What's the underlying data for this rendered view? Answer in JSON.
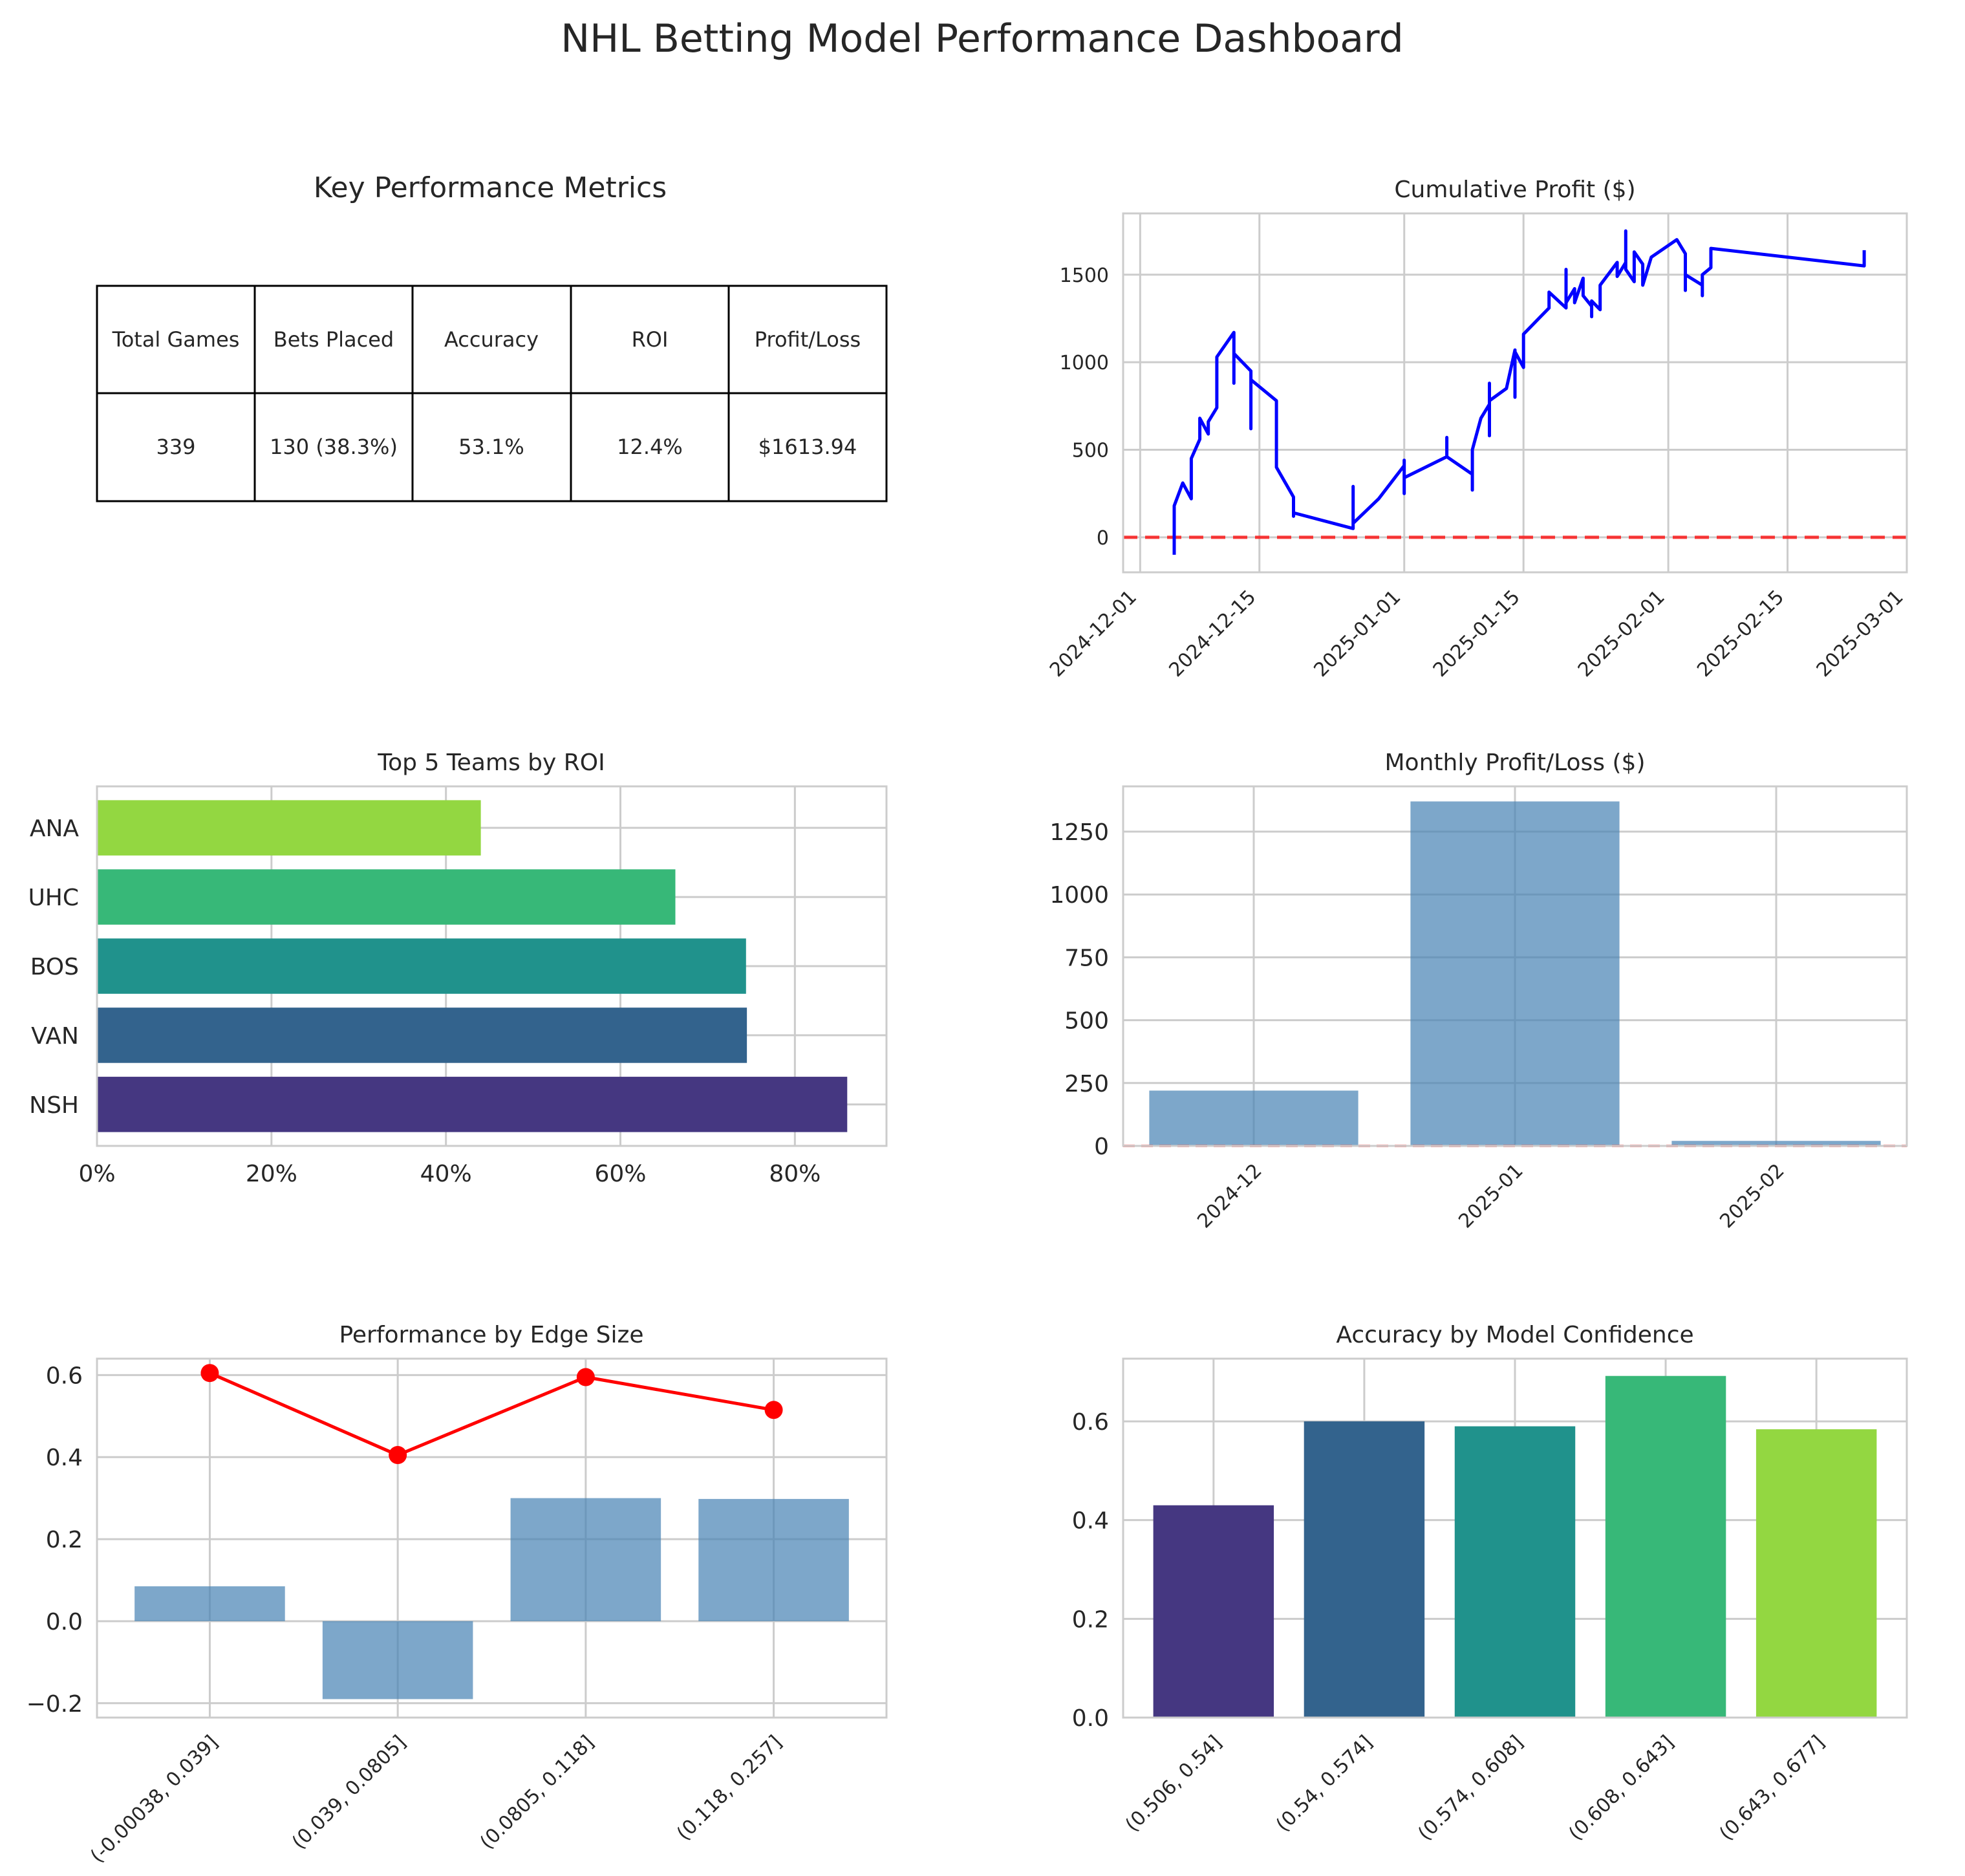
{
  "dashboard_title": "NHL Betting Model Performance Dashboard",
  "metrics_table": {
    "title": "Key Performance Metrics",
    "headers": [
      "Total Games",
      "Bets Placed",
      "Accuracy",
      "ROI",
      "Profit/Loss"
    ],
    "values": [
      "339",
      "130 (38.3%)",
      "53.1%",
      "12.4%",
      "$1613.94"
    ]
  },
  "chart_data": [
    {
      "id": "cumulative",
      "type": "line",
      "title": "Cumulative Profit ($)",
      "xlabel": "",
      "ylabel": "",
      "xlim": [
        "2024-11-29",
        "2025-03-01"
      ],
      "ylim": [
        -200,
        1850
      ],
      "x_ticks": [
        "2024-12-01",
        "2024-12-15",
        "2025-01-01",
        "2025-01-15",
        "2025-02-01",
        "2025-02-15",
        "2025-03-01"
      ],
      "y_ticks": [
        0,
        500,
        1000,
        1500
      ],
      "grid": true,
      "line_color": "#0000ff",
      "reference_line": {
        "y": 0,
        "color": "#ff0000",
        "style": "dashed"
      },
      "points": [
        [
          "2024-12-05",
          -100
        ],
        [
          "2024-12-05",
          180
        ],
        [
          "2024-12-06",
          310
        ],
        [
          "2024-12-07",
          220
        ],
        [
          "2024-12-07",
          450
        ],
        [
          "2024-12-08",
          560
        ],
        [
          "2024-12-08",
          680
        ],
        [
          "2024-12-09",
          590
        ],
        [
          "2024-12-09",
          660
        ],
        [
          "2024-12-10",
          740
        ],
        [
          "2024-12-10",
          1030
        ],
        [
          "2024-12-11",
          1100
        ],
        [
          "2024-12-12",
          1170
        ],
        [
          "2024-12-12",
          880
        ],
        [
          "2024-12-12",
          1050
        ],
        [
          "2024-12-13",
          1000
        ],
        [
          "2024-12-14",
          950
        ],
        [
          "2024-12-14",
          620
        ],
        [
          "2024-12-14",
          900
        ],
        [
          "2024-12-17",
          780
        ],
        [
          "2024-12-17",
          400
        ],
        [
          "2024-12-19",
          230
        ],
        [
          "2024-12-19",
          120
        ],
        [
          "2024-12-19",
          140
        ],
        [
          "2024-12-26",
          50
        ],
        [
          "2024-12-26",
          290
        ],
        [
          "2024-12-26",
          80
        ],
        [
          "2024-12-29",
          220
        ],
        [
          "2025-01-01",
          410
        ],
        [
          "2025-01-01",
          440
        ],
        [
          "2025-01-01",
          250
        ],
        [
          "2025-01-01",
          340
        ],
        [
          "2025-01-06",
          460
        ],
        [
          "2025-01-06",
          570
        ],
        [
          "2025-01-06",
          460
        ],
        [
          "2025-01-09",
          360
        ],
        [
          "2025-01-09",
          270
        ],
        [
          "2025-01-09",
          500
        ],
        [
          "2025-01-10",
          680
        ],
        [
          "2025-01-11",
          760
        ],
        [
          "2025-01-11",
          880
        ],
        [
          "2025-01-11",
          580
        ],
        [
          "2025-01-11",
          780
        ],
        [
          "2025-01-13",
          850
        ],
        [
          "2025-01-14",
          1070
        ],
        [
          "2025-01-14",
          800
        ],
        [
          "2025-01-14",
          1060
        ],
        [
          "2025-01-15",
          970
        ],
        [
          "2025-01-15",
          1160
        ],
        [
          "2025-01-17",
          1260
        ],
        [
          "2025-01-18",
          1310
        ],
        [
          "2025-01-18",
          1400
        ],
        [
          "2025-01-20",
          1310
        ],
        [
          "2025-01-20",
          1530
        ],
        [
          "2025-01-20",
          1340
        ],
        [
          "2025-01-21",
          1420
        ],
        [
          "2025-01-21",
          1340
        ],
        [
          "2025-01-22",
          1480
        ],
        [
          "2025-01-22",
          1380
        ],
        [
          "2025-01-23",
          1320
        ],
        [
          "2025-01-23",
          1260
        ],
        [
          "2025-01-23",
          1350
        ],
        [
          "2025-01-24",
          1300
        ],
        [
          "2025-01-24",
          1440
        ],
        [
          "2025-01-26",
          1570
        ],
        [
          "2025-01-26",
          1490
        ],
        [
          "2025-01-27",
          1570
        ],
        [
          "2025-01-27",
          1750
        ],
        [
          "2025-01-27",
          1530
        ],
        [
          "2025-01-28",
          1460
        ],
        [
          "2025-01-28",
          1630
        ],
        [
          "2025-01-29",
          1560
        ],
        [
          "2025-01-29",
          1440
        ],
        [
          "2025-01-30",
          1600
        ],
        [
          "2025-02-02",
          1700
        ],
        [
          "2025-02-03",
          1620
        ],
        [
          "2025-02-03",
          1410
        ],
        [
          "2025-02-03",
          1500
        ],
        [
          "2025-02-05",
          1440
        ],
        [
          "2025-02-05",
          1380
        ],
        [
          "2025-02-05",
          1500
        ],
        [
          "2025-02-06",
          1540
        ],
        [
          "2025-02-06",
          1650
        ],
        [
          "2025-02-24",
          1550
        ],
        [
          "2025-02-24",
          1640
        ]
      ]
    },
    {
      "id": "teams",
      "type": "bar",
      "orientation": "horizontal",
      "title": "Top 5 Teams by ROI",
      "xlabel": "",
      "ylabel": "",
      "categories": [
        "NSH",
        "VAN",
        "BOS",
        "UHC",
        "ANA"
      ],
      "values": [
        0.86,
        0.745,
        0.744,
        0.663,
        0.44
      ],
      "colors": [
        "#453781",
        "#33638d",
        "#20928c",
        "#37b878",
        "#93d741"
      ],
      "xlim": [
        0,
        0.905
      ],
      "x_ticks": [
        "0%",
        "20%",
        "40%",
        "60%",
        "80%"
      ],
      "grid": true
    },
    {
      "id": "monthly",
      "type": "bar",
      "title": "Monthly Profit/Loss ($)",
      "xlabel": "",
      "ylabel": "",
      "categories": [
        "2024-12",
        "2025-01",
        "2025-02"
      ],
      "values": [
        220,
        1370,
        20
      ],
      "ylim": [
        0,
        1430
      ],
      "y_ticks": [
        0,
        250,
        500,
        750,
        1000,
        1250
      ],
      "bar_color": "#4682b4",
      "reference_line": {
        "y": 0,
        "color": "#ff0000",
        "style": "dashed"
      },
      "grid": true
    },
    {
      "id": "edge",
      "type": "bar",
      "title": "Performance by Edge Size",
      "xlabel": "",
      "ylabel": "",
      "categories": [
        "(-0.00038, 0.039]",
        "(0.039, 0.0805]",
        "(0.0805, 0.118]",
        "(0.118, 0.257]"
      ],
      "series": [
        {
          "kind": "bar",
          "values": [
            0.085,
            -0.19,
            0.3,
            0.298
          ],
          "color": "#4682b4"
        },
        {
          "kind": "line",
          "values": [
            0.605,
            0.405,
            0.595,
            0.515
          ],
          "color": "#ff0000"
        }
      ],
      "ylim": [
        -0.235,
        0.64
      ],
      "y_ticks": [
        "0.6",
        "0.4",
        "0.2",
        "0.0",
        "−0.2"
      ],
      "grid": true
    },
    {
      "id": "confidence",
      "type": "bar",
      "title": "Accuracy by Model Confidence",
      "xlabel": "",
      "ylabel": "",
      "categories": [
        "(0.506, 0.54]",
        "(0.54, 0.574]",
        "(0.574, 0.608]",
        "(0.608, 0.643]",
        "(0.643, 0.677]"
      ],
      "values": [
        0.43,
        0.6,
        0.59,
        0.692,
        0.584
      ],
      "colors": [
        "#453781",
        "#33638d",
        "#20928c",
        "#37b878",
        "#93d741"
      ],
      "ylim": [
        0,
        0.727
      ],
      "y_ticks": [
        "0.0",
        "0.2",
        "0.4",
        "0.6"
      ],
      "grid": true
    }
  ]
}
